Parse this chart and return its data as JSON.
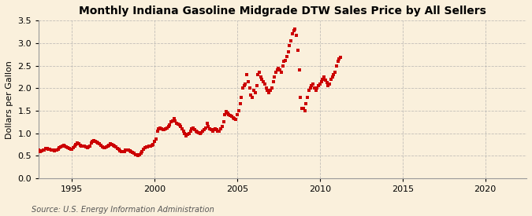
{
  "title": "Monthly Indiana Gasoline Midgrade DTW Sales Price by All Sellers",
  "ylabel": "Dollars per Gallon",
  "source": "Source: U.S. Energy Information Administration",
  "xlim": [
    1993.0,
    2022.5
  ],
  "ylim": [
    0.0,
    3.5
  ],
  "xticks": [
    1995,
    2000,
    2005,
    2010,
    2015,
    2020
  ],
  "yticks": [
    0.0,
    0.5,
    1.0,
    1.5,
    2.0,
    2.5,
    3.0,
    3.5
  ],
  "fig_background_color": "#FAF0DC",
  "ax_background_color": "#FAF0DC",
  "dot_color": "#CC0000",
  "grid_color": "#AAAAAA",
  "title_fontsize": 10,
  "label_fontsize": 8,
  "tick_fontsize": 8,
  "source_fontsize": 7,
  "data": [
    [
      1993.0,
      0.62
    ],
    [
      1993.08,
      0.6
    ],
    [
      1993.17,
      0.61
    ],
    [
      1993.25,
      0.62
    ],
    [
      1993.33,
      0.63
    ],
    [
      1993.42,
      0.66
    ],
    [
      1993.5,
      0.67
    ],
    [
      1993.58,
      0.65
    ],
    [
      1993.67,
      0.64
    ],
    [
      1993.75,
      0.63
    ],
    [
      1993.83,
      0.62
    ],
    [
      1993.92,
      0.61
    ],
    [
      1994.0,
      0.62
    ],
    [
      1994.08,
      0.63
    ],
    [
      1994.17,
      0.65
    ],
    [
      1994.25,
      0.68
    ],
    [
      1994.33,
      0.7
    ],
    [
      1994.42,
      0.72
    ],
    [
      1994.5,
      0.73
    ],
    [
      1994.58,
      0.71
    ],
    [
      1994.67,
      0.69
    ],
    [
      1994.75,
      0.68
    ],
    [
      1994.83,
      0.67
    ],
    [
      1994.92,
      0.65
    ],
    [
      1995.0,
      0.65
    ],
    [
      1995.08,
      0.68
    ],
    [
      1995.17,
      0.72
    ],
    [
      1995.25,
      0.75
    ],
    [
      1995.33,
      0.78
    ],
    [
      1995.42,
      0.76
    ],
    [
      1995.5,
      0.74
    ],
    [
      1995.58,
      0.72
    ],
    [
      1995.67,
      0.72
    ],
    [
      1995.75,
      0.71
    ],
    [
      1995.83,
      0.7
    ],
    [
      1995.92,
      0.68
    ],
    [
      1996.0,
      0.69
    ],
    [
      1996.08,
      0.72
    ],
    [
      1996.17,
      0.78
    ],
    [
      1996.25,
      0.82
    ],
    [
      1996.33,
      0.84
    ],
    [
      1996.42,
      0.82
    ],
    [
      1996.5,
      0.8
    ],
    [
      1996.58,
      0.79
    ],
    [
      1996.67,
      0.77
    ],
    [
      1996.75,
      0.73
    ],
    [
      1996.83,
      0.7
    ],
    [
      1996.92,
      0.68
    ],
    [
      1997.0,
      0.68
    ],
    [
      1997.08,
      0.69
    ],
    [
      1997.17,
      0.72
    ],
    [
      1997.25,
      0.74
    ],
    [
      1997.33,
      0.76
    ],
    [
      1997.42,
      0.75
    ],
    [
      1997.5,
      0.73
    ],
    [
      1997.58,
      0.72
    ],
    [
      1997.67,
      0.7
    ],
    [
      1997.75,
      0.67
    ],
    [
      1997.83,
      0.64
    ],
    [
      1997.92,
      0.61
    ],
    [
      1998.0,
      0.6
    ],
    [
      1998.08,
      0.59
    ],
    [
      1998.17,
      0.6
    ],
    [
      1998.25,
      0.62
    ],
    [
      1998.33,
      0.63
    ],
    [
      1998.42,
      0.62
    ],
    [
      1998.5,
      0.61
    ],
    [
      1998.58,
      0.59
    ],
    [
      1998.67,
      0.57
    ],
    [
      1998.75,
      0.55
    ],
    [
      1998.83,
      0.53
    ],
    [
      1998.92,
      0.52
    ],
    [
      1999.0,
      0.51
    ],
    [
      1999.08,
      0.52
    ],
    [
      1999.17,
      0.55
    ],
    [
      1999.25,
      0.6
    ],
    [
      1999.33,
      0.65
    ],
    [
      1999.42,
      0.68
    ],
    [
      1999.5,
      0.7
    ],
    [
      1999.58,
      0.7
    ],
    [
      1999.67,
      0.71
    ],
    [
      1999.75,
      0.72
    ],
    [
      1999.83,
      0.73
    ],
    [
      1999.92,
      0.75
    ],
    [
      2000.0,
      0.82
    ],
    [
      2000.08,
      0.88
    ],
    [
      2000.17,
      1.05
    ],
    [
      2000.25,
      1.1
    ],
    [
      2000.33,
      1.12
    ],
    [
      2000.42,
      1.1
    ],
    [
      2000.5,
      1.08
    ],
    [
      2000.58,
      1.09
    ],
    [
      2000.67,
      1.1
    ],
    [
      2000.75,
      1.12
    ],
    [
      2000.83,
      1.15
    ],
    [
      2000.92,
      1.18
    ],
    [
      2001.0,
      1.25
    ],
    [
      2001.08,
      1.28
    ],
    [
      2001.17,
      1.32
    ],
    [
      2001.25,
      1.28
    ],
    [
      2001.33,
      1.22
    ],
    [
      2001.42,
      1.2
    ],
    [
      2001.5,
      1.18
    ],
    [
      2001.58,
      1.15
    ],
    [
      2001.67,
      1.1
    ],
    [
      2001.75,
      1.05
    ],
    [
      2001.83,
      1.0
    ],
    [
      2001.92,
      0.95
    ],
    [
      2002.0,
      0.98
    ],
    [
      2002.08,
      1.0
    ],
    [
      2002.17,
      1.05
    ],
    [
      2002.25,
      1.1
    ],
    [
      2002.33,
      1.12
    ],
    [
      2002.42,
      1.08
    ],
    [
      2002.5,
      1.05
    ],
    [
      2002.58,
      1.03
    ],
    [
      2002.67,
      1.02
    ],
    [
      2002.75,
      1.0
    ],
    [
      2002.83,
      1.02
    ],
    [
      2002.92,
      1.05
    ],
    [
      2003.0,
      1.08
    ],
    [
      2003.08,
      1.12
    ],
    [
      2003.17,
      1.22
    ],
    [
      2003.25,
      1.15
    ],
    [
      2003.33,
      1.1
    ],
    [
      2003.42,
      1.08
    ],
    [
      2003.5,
      1.05
    ],
    [
      2003.58,
      1.08
    ],
    [
      2003.67,
      1.1
    ],
    [
      2003.75,
      1.08
    ],
    [
      2003.83,
      1.05
    ],
    [
      2003.92,
      1.05
    ],
    [
      2004.0,
      1.1
    ],
    [
      2004.08,
      1.15
    ],
    [
      2004.17,
      1.25
    ],
    [
      2004.25,
      1.42
    ],
    [
      2004.33,
      1.48
    ],
    [
      2004.42,
      1.45
    ],
    [
      2004.5,
      1.42
    ],
    [
      2004.58,
      1.4
    ],
    [
      2004.67,
      1.38
    ],
    [
      2004.75,
      1.35
    ],
    [
      2004.83,
      1.32
    ],
    [
      2004.92,
      1.3
    ],
    [
      2005.0,
      1.42
    ],
    [
      2005.08,
      1.5
    ],
    [
      2005.17,
      1.65
    ],
    [
      2005.25,
      1.8
    ],
    [
      2005.33,
      2.0
    ],
    [
      2005.42,
      2.05
    ],
    [
      2005.5,
      2.1
    ],
    [
      2005.58,
      2.3
    ],
    [
      2005.67,
      2.15
    ],
    [
      2005.75,
      2.0
    ],
    [
      2005.83,
      1.85
    ],
    [
      2005.92,
      1.8
    ],
    [
      2006.0,
      1.95
    ],
    [
      2006.08,
      1.9
    ],
    [
      2006.17,
      2.05
    ],
    [
      2006.25,
      2.3
    ],
    [
      2006.33,
      2.35
    ],
    [
      2006.42,
      2.25
    ],
    [
      2006.5,
      2.2
    ],
    [
      2006.58,
      2.15
    ],
    [
      2006.67,
      2.1
    ],
    [
      2006.75,
      2.0
    ],
    [
      2006.83,
      1.95
    ],
    [
      2006.92,
      1.9
    ],
    [
      2007.0,
      1.95
    ],
    [
      2007.08,
      2.0
    ],
    [
      2007.17,
      2.15
    ],
    [
      2007.25,
      2.25
    ],
    [
      2007.33,
      2.35
    ],
    [
      2007.42,
      2.4
    ],
    [
      2007.5,
      2.45
    ],
    [
      2007.58,
      2.4
    ],
    [
      2007.67,
      2.35
    ],
    [
      2007.75,
      2.5
    ],
    [
      2007.83,
      2.6
    ],
    [
      2007.92,
      2.62
    ],
    [
      2008.0,
      2.7
    ],
    [
      2008.08,
      2.8
    ],
    [
      2008.17,
      2.95
    ],
    [
      2008.25,
      3.05
    ],
    [
      2008.33,
      3.2
    ],
    [
      2008.42,
      3.28
    ],
    [
      2008.5,
      3.32
    ],
    [
      2008.58,
      3.18
    ],
    [
      2008.67,
      2.85
    ],
    [
      2008.75,
      2.4
    ],
    [
      2008.83,
      1.8
    ],
    [
      2008.92,
      1.55
    ],
    [
      2009.0,
      1.55
    ],
    [
      2009.08,
      1.5
    ],
    [
      2009.17,
      1.65
    ],
    [
      2009.25,
      1.8
    ],
    [
      2009.33,
      1.95
    ],
    [
      2009.42,
      2.0
    ],
    [
      2009.5,
      2.05
    ],
    [
      2009.58,
      2.1
    ],
    [
      2009.67,
      2.0
    ],
    [
      2009.75,
      1.95
    ],
    [
      2009.83,
      2.0
    ],
    [
      2009.92,
      2.05
    ],
    [
      2010.0,
      2.1
    ],
    [
      2010.08,
      2.15
    ],
    [
      2010.17,
      2.2
    ],
    [
      2010.25,
      2.25
    ],
    [
      2010.33,
      2.18
    ],
    [
      2010.42,
      2.12
    ],
    [
      2010.5,
      2.05
    ],
    [
      2010.58,
      2.1
    ],
    [
      2010.67,
      2.2
    ],
    [
      2010.75,
      2.25
    ],
    [
      2010.83,
      2.3
    ],
    [
      2010.92,
      2.35
    ],
    [
      2011.0,
      2.5
    ],
    [
      2011.08,
      2.6
    ],
    [
      2011.17,
      2.65
    ],
    [
      2011.25,
      2.68
    ]
  ]
}
